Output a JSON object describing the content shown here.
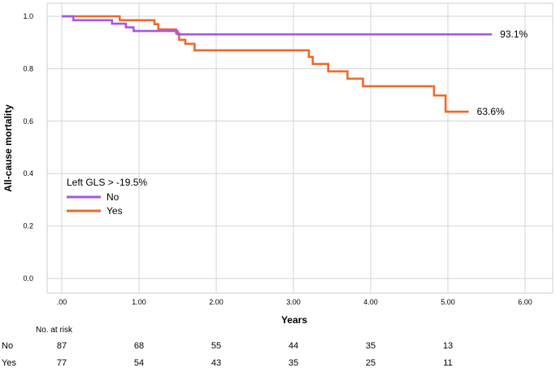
{
  "chart_data": {
    "type": "line",
    "title": "",
    "xlabel": "Years",
    "ylabel": "All-cause mortality",
    "xlim": [
      0,
      6
    ],
    "ylim": [
      0,
      1
    ],
    "x_ticks": [
      0,
      1,
      2,
      3,
      4,
      5,
      6
    ],
    "x_tick_labels": [
      ".00",
      "1.00",
      "2.00",
      "3.00",
      "4.00",
      "5.00",
      "6.00"
    ],
    "y_ticks": [
      0,
      0.2,
      0.4,
      0.6,
      0.8,
      1.0
    ],
    "y_tick_labels": [
      "0.0",
      "0.2",
      "0.4",
      "0.6",
      "0.8",
      "1.0"
    ],
    "grid": true,
    "legend": {
      "title": "Left GLS > -19.5%",
      "position": "middle-left"
    },
    "series": [
      {
        "name": "No",
        "color": "#a855e8",
        "steps": [
          [
            0,
            1.0
          ],
          [
            0.15,
            0.985
          ],
          [
            0.65,
            0.972
          ],
          [
            0.83,
            0.958
          ],
          [
            0.93,
            0.944
          ],
          [
            1.12,
            0.944
          ],
          [
            1.5,
            0.931
          ],
          [
            5.57,
            0.931
          ]
        ],
        "end_label": "93.1%"
      },
      {
        "name": "Yes",
        "color": "#ec6a2c",
        "steps": [
          [
            0,
            1.0
          ],
          [
            0.75,
            0.985
          ],
          [
            1.2,
            0.97
          ],
          [
            1.25,
            0.95
          ],
          [
            1.48,
            0.935
          ],
          [
            1.52,
            0.91
          ],
          [
            1.6,
            0.895
          ],
          [
            1.72,
            0.87
          ],
          [
            3.2,
            0.845
          ],
          [
            3.25,
            0.818
          ],
          [
            3.45,
            0.79
          ],
          [
            3.7,
            0.762
          ],
          [
            3.9,
            0.733
          ],
          [
            4.82,
            0.698
          ],
          [
            4.97,
            0.636
          ],
          [
            5.27,
            0.636
          ]
        ],
        "end_label": "63.6%"
      }
    ],
    "risk_table": {
      "header": "No. at risk",
      "x": [
        0,
        1,
        2,
        3,
        4,
        5
      ],
      "rows": [
        {
          "label": "No",
          "values": [
            "87",
            "68",
            "55",
            "44",
            "35",
            "13"
          ]
        },
        {
          "label": "Yes",
          "values": [
            "77",
            "54",
            "43",
            "35",
            "25",
            "11"
          ]
        }
      ]
    }
  }
}
